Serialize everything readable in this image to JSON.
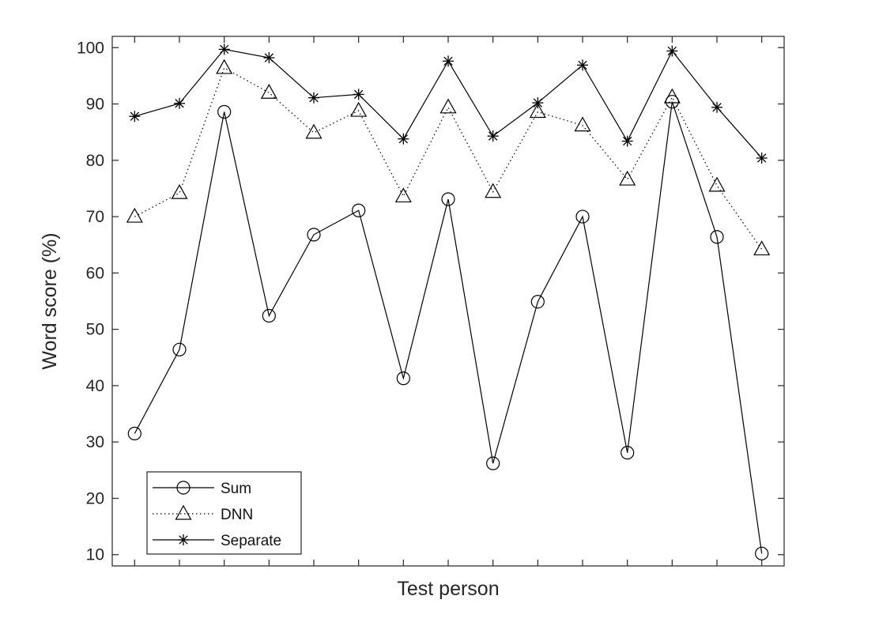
{
  "chart_data": {
    "type": "line",
    "title": "",
    "xlabel": "Test person",
    "ylabel": "Word score (%)",
    "ylim": [
      8,
      102
    ],
    "yticks": [
      10,
      20,
      30,
      40,
      50,
      60,
      70,
      80,
      90,
      100
    ],
    "x": [
      1,
      2,
      3,
      4,
      5,
      6,
      7,
      8,
      9,
      10,
      11,
      12,
      13,
      14,
      15
    ],
    "xlim": [
      0.5,
      15.5
    ],
    "grid": false,
    "legend_position": "bottom-left",
    "series": [
      {
        "name": "Sum",
        "values": [
          31.5,
          46.4,
          88.6,
          52.4,
          66.8,
          71.1,
          41.3,
          73.1,
          26.2,
          54.9,
          70.0,
          28.1,
          90.4,
          66.4,
          10.2
        ],
        "marker": "circle",
        "line_style": "solid",
        "color": "#000000"
      },
      {
        "name": "DNN",
        "values": [
          70.0,
          74.2,
          96.4,
          92.0,
          84.9,
          88.8,
          73.6,
          89.4,
          74.4,
          88.6,
          86.2,
          76.6,
          91.2,
          75.5,
          64.2
        ],
        "marker": "triangle",
        "line_style": "dotted",
        "color": "#000000"
      },
      {
        "name": "Separate",
        "values": [
          87.8,
          90.1,
          99.7,
          98.2,
          91.1,
          91.7,
          83.8,
          97.6,
          84.3,
          90.2,
          96.9,
          83.4,
          99.4,
          89.4,
          80.4
        ],
        "marker": "asterisk",
        "line_style": "solid",
        "color": "#000000"
      }
    ]
  }
}
